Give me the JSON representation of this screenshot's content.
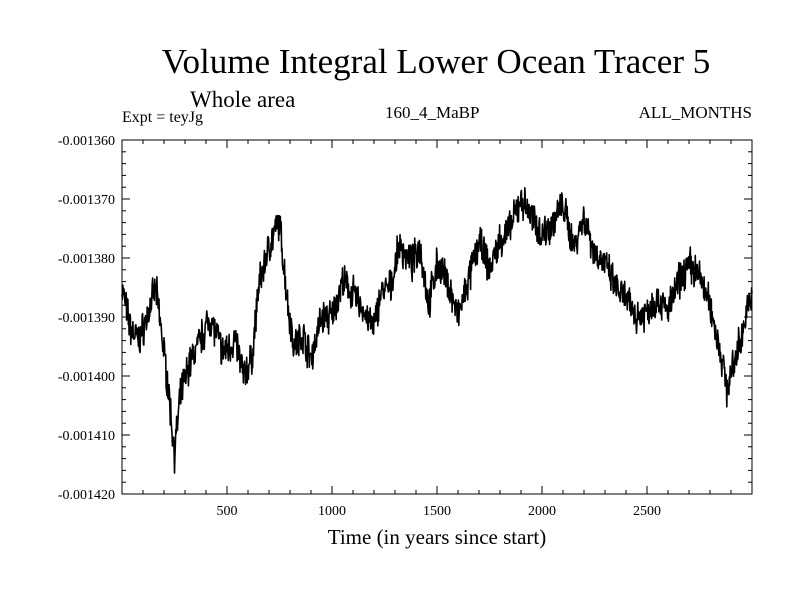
{
  "chart_data": {
    "type": "line",
    "title": "Volume Integral Lower Ocean Tracer 5",
    "subtitle": "Whole area",
    "experiment_label": "Expt = teyJg",
    "run_label": "160_4_MaBP",
    "period_label": "ALL_MONTHS",
    "xlabel": "Time (in years since start)",
    "ylabel": "",
    "xlim": [
      0,
      3000
    ],
    "ylim": [
      -0.00142,
      -0.00136
    ],
    "x_ticks": [
      500,
      1000,
      1500,
      2000,
      2500
    ],
    "y_ticks": [
      -0.00142,
      -0.00141,
      -0.0014,
      -0.00139,
      -0.00138,
      -0.00137,
      -0.00136
    ],
    "x_tick_labels": [
      "500",
      "1000",
      "1500",
      "2000",
      "2500"
    ],
    "y_tick_labels": [
      "-0.001420",
      "-0.001410",
      "-0.001400",
      "-0.001390",
      "-0.001380",
      "-0.001370",
      "-0.001360"
    ],
    "series": [
      {
        "name": "Volume Integral Lower Ocean Tracer 5",
        "color": "#000000",
        "x": [
          0,
          40,
          80,
          120,
          160,
          190,
          220,
          250,
          280,
          320,
          360,
          420,
          480,
          540,
          580,
          620,
          650,
          700,
          750,
          790,
          820,
          860,
          900,
          950,
          1000,
          1050,
          1100,
          1150,
          1200,
          1230,
          1280,
          1320,
          1380,
          1420,
          1460,
          1500,
          1550,
          1600,
          1650,
          1700,
          1750,
          1800,
          1850,
          1900,
          1950,
          2000,
          2050,
          2100,
          2150,
          2200,
          2250,
          2300,
          2350,
          2400,
          2450,
          2500,
          2550,
          2600,
          2650,
          2700,
          2750,
          2800,
          2850,
          2880,
          2900,
          2950,
          3000
        ],
        "values": [
          -0.001385,
          -0.001392,
          -0.001394,
          -0.00139,
          -0.001385,
          -0.001393,
          -0.001402,
          -0.001413,
          -0.001403,
          -0.001398,
          -0.001395,
          -0.00139,
          -0.001396,
          -0.001394,
          -0.0014,
          -0.001397,
          -0.001385,
          -0.001378,
          -0.001374,
          -0.001388,
          -0.001395,
          -0.001393,
          -0.001397,
          -0.00139,
          -0.00139,
          -0.001384,
          -0.001386,
          -0.001389,
          -0.001392,
          -0.001386,
          -0.001385,
          -0.001378,
          -0.001381,
          -0.001378,
          -0.001388,
          -0.001381,
          -0.001384,
          -0.00139,
          -0.001384,
          -0.001377,
          -0.001382,
          -0.001377,
          -0.001375,
          -0.00137,
          -0.001373,
          -0.001376,
          -0.001374,
          -0.001371,
          -0.001378,
          -0.001373,
          -0.001379,
          -0.001381,
          -0.001385,
          -0.001387,
          -0.00139,
          -0.001389,
          -0.001387,
          -0.001389,
          -0.001384,
          -0.001381,
          -0.001383,
          -0.001388,
          -0.001396,
          -0.001402,
          -0.0014,
          -0.001393,
          -0.001386
        ]
      }
    ]
  }
}
